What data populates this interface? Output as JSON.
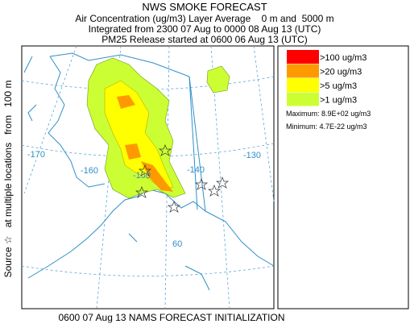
{
  "header": {
    "title": "NWS SMOKE FORECAST",
    "lines": [
      "Air Concentration (ug/m3) Layer Average    0 m and  5000 m",
      "Integrated from 2300 07 Aug to 0000 08 Aug 13 (UTC)",
      "PM25 Release started at 0600 06 Aug 13 (UTC)"
    ]
  },
  "side_label": "Source ☆   at multiple locations   from   100 m",
  "footer": "0600 07 Aug 13 NAMS FORECAST INITIALIZATION",
  "legend": {
    "items": [
      {
        "label": ">100 ug/m3",
        "color": "#ff0000"
      },
      {
        "label": ">20 ug/m3",
        "color": "#ff9900"
      },
      {
        "label": ">5 ug/m3",
        "color": "#ffff00"
      },
      {
        "label": ">1 ug/m3",
        "color": "#ccff33"
      }
    ],
    "maximum": "Maximum: 8.9E+02 ug/m3",
    "minimum": "Minimum: 4.7E-22 ug/m3"
  },
  "map": {
    "labels": [
      "-170",
      "-160",
      "-150",
      "-140",
      "-130",
      "60"
    ]
  }
}
